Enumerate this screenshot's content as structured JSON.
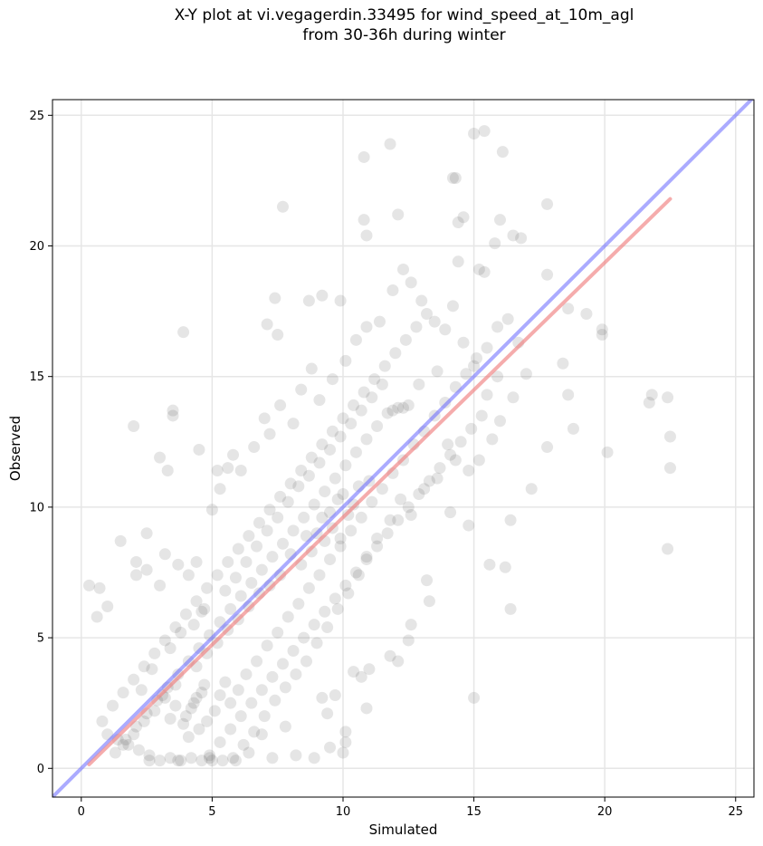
{
  "chart_data": {
    "type": "scatter",
    "title_line1": "X-Y plot at vi.vegagerdin.33495 for wind_speed_at_10m_agl",
    "title_line2": "from 30-36h during winter",
    "xlabel": "Simulated",
    "ylabel": "Observed",
    "xlim": [
      -1.1,
      25.7
    ],
    "ylim": [
      -1.1,
      25.6
    ],
    "xticks": [
      0,
      5,
      10,
      15,
      20,
      25
    ],
    "yticks": [
      0,
      5,
      10,
      15,
      20,
      25
    ],
    "grid": true,
    "point_color": "#444444",
    "identity_line": {
      "color": "#6666ff",
      "x": [
        -1.1,
        25.7
      ],
      "y": [
        -1.1,
        25.7
      ]
    },
    "fit_line": {
      "color": "#f08080",
      "x": [
        0.3,
        22.5
      ],
      "y": [
        0.15,
        21.8
      ]
    },
    "points": [
      [
        0.3,
        7.0
      ],
      [
        0.7,
        6.9
      ],
      [
        0.6,
        5.8
      ],
      [
        1.0,
        6.2
      ],
      [
        2.0,
        13.1
      ],
      [
        2.5,
        9.0
      ],
      [
        3.5,
        13.5
      ],
      [
        3.5,
        13.7
      ],
      [
        3.0,
        11.9
      ],
      [
        3.3,
        11.4
      ],
      [
        3.9,
        16.7
      ],
      [
        4.5,
        12.2
      ],
      [
        5.2,
        11.4
      ],
      [
        7.7,
        21.5
      ],
      [
        7.5,
        16.6
      ],
      [
        7.1,
        17.0
      ],
      [
        7.4,
        18.0
      ],
      [
        8.7,
        17.9
      ],
      [
        9.2,
        18.1
      ],
      [
        9.9,
        17.9
      ],
      [
        10.8,
        23.4
      ],
      [
        11.8,
        23.9
      ],
      [
        10.8,
        21.0
      ],
      [
        10.9,
        20.4
      ],
      [
        12.1,
        21.2
      ],
      [
        14.2,
        22.6
      ],
      [
        14.3,
        22.6
      ],
      [
        14.4,
        20.9
      ],
      [
        14.6,
        21.1
      ],
      [
        15.0,
        24.3
      ],
      [
        15.4,
        24.4
      ],
      [
        16.1,
        23.6
      ],
      [
        15.8,
        20.1
      ],
      [
        16.0,
        21.0
      ],
      [
        16.5,
        20.4
      ],
      [
        16.8,
        20.3
      ],
      [
        14.4,
        19.4
      ],
      [
        15.2,
        19.1
      ],
      [
        15.4,
        19.0
      ],
      [
        17.8,
        21.6
      ],
      [
        17.8,
        18.9
      ],
      [
        18.6,
        17.6
      ],
      [
        19.3,
        17.4
      ],
      [
        19.9,
        16.8
      ],
      [
        19.9,
        16.6
      ],
      [
        21.8,
        14.3
      ],
      [
        21.7,
        14.0
      ],
      [
        22.4,
        14.2
      ],
      [
        22.5,
        12.7
      ],
      [
        22.5,
        11.5
      ],
      [
        22.4,
        8.4
      ],
      [
        20.1,
        12.1
      ],
      [
        18.8,
        13.0
      ],
      [
        18.6,
        14.3
      ],
      [
        18.4,
        15.5
      ],
      [
        17.8,
        12.3
      ],
      [
        17.2,
        10.7
      ],
      [
        16.4,
        9.5
      ],
      [
        16.4,
        6.1
      ],
      [
        16.2,
        7.7
      ],
      [
        15.0,
        2.7
      ],
      [
        15.6,
        7.8
      ],
      [
        13.3,
        6.4
      ],
      [
        14.8,
        9.3
      ],
      [
        14.1,
        9.8
      ],
      [
        13.2,
        7.2
      ],
      [
        12.6,
        5.5
      ],
      [
        12.1,
        4.1
      ],
      [
        11.8,
        4.3
      ],
      [
        12.5,
        4.9
      ],
      [
        10.9,
        2.3
      ],
      [
        10.4,
        3.7
      ],
      [
        10.7,
        3.5
      ],
      [
        11.0,
        3.8
      ],
      [
        10.0,
        0.6
      ],
      [
        10.1,
        1.0
      ],
      [
        10.1,
        1.4
      ],
      [
        9.2,
        2.7
      ],
      [
        9.4,
        2.1
      ],
      [
        9.7,
        2.8
      ],
      [
        1.5,
        8.7
      ],
      [
        2.1,
        7.4
      ],
      [
        2.1,
        7.9
      ],
      [
        2.5,
        7.6
      ],
      [
        3.0,
        7.0
      ],
      [
        3.2,
        8.2
      ],
      [
        3.7,
        7.8
      ],
      [
        4.1,
        7.4
      ],
      [
        4.4,
        7.9
      ],
      [
        4.6,
        6.0
      ],
      [
        5.0,
        9.9
      ],
      [
        5.3,
        10.7
      ],
      [
        5.6,
        11.5
      ],
      [
        5.8,
        12.0
      ],
      [
        6.1,
        11.4
      ],
      [
        6.6,
        12.3
      ],
      [
        7.0,
        13.4
      ],
      [
        7.2,
        12.8
      ],
      [
        7.6,
        13.9
      ],
      [
        8.1,
        13.2
      ],
      [
        8.4,
        14.5
      ],
      [
        8.8,
        15.3
      ],
      [
        9.1,
        14.1
      ],
      [
        9.6,
        14.9
      ],
      [
        10.1,
        15.6
      ],
      [
        10.5,
        16.4
      ],
      [
        10.9,
        16.9
      ],
      [
        11.4,
        17.1
      ],
      [
        11.9,
        18.3
      ],
      [
        12.3,
        19.1
      ],
      [
        12.6,
        18.6
      ],
      [
        13.0,
        17.9
      ],
      [
        13.5,
        17.1
      ],
      [
        13.9,
        16.8
      ],
      [
        14.2,
        17.7
      ],
      [
        14.6,
        16.3
      ],
      [
        15.0,
        15.4
      ],
      [
        15.5,
        16.1
      ],
      [
        15.9,
        16.9
      ],
      [
        16.3,
        17.2
      ],
      [
        16.7,
        16.3
      ],
      [
        17.0,
        15.1
      ],
      [
        16.5,
        14.2
      ],
      [
        16.0,
        13.3
      ],
      [
        15.7,
        12.6
      ],
      [
        15.2,
        11.8
      ],
      [
        14.8,
        11.4
      ],
      [
        14.3,
        11.8
      ],
      [
        14.0,
        12.4
      ],
      [
        13.6,
        11.1
      ],
      [
        13.1,
        10.7
      ],
      [
        12.6,
        9.7
      ],
      [
        12.2,
        10.3
      ],
      [
        11.8,
        9.5
      ],
      [
        11.3,
        8.8
      ],
      [
        10.9,
        8.1
      ],
      [
        10.6,
        7.4
      ],
      [
        10.2,
        6.7
      ],
      [
        9.8,
        6.1
      ],
      [
        9.4,
        5.4
      ],
      [
        9.0,
        4.8
      ],
      [
        8.6,
        4.1
      ],
      [
        8.2,
        3.6
      ],
      [
        7.8,
        3.1
      ],
      [
        7.4,
        2.6
      ],
      [
        7.0,
        2.0
      ],
      [
        6.6,
        1.4
      ],
      [
        6.2,
        0.9
      ],
      [
        5.8,
        0.4
      ],
      [
        5.4,
        0.3
      ],
      [
        5.0,
        0.3
      ],
      [
        4.6,
        0.3
      ],
      [
        4.2,
        0.4
      ],
      [
        3.8,
        0.3
      ],
      [
        3.4,
        0.4
      ],
      [
        3.0,
        0.3
      ],
      [
        2.6,
        0.5
      ],
      [
        2.2,
        0.7
      ],
      [
        1.8,
        0.9
      ],
      [
        1.4,
        1.1
      ],
      [
        1.0,
        1.3
      ],
      [
        0.8,
        1.8
      ],
      [
        1.2,
        2.4
      ],
      [
        1.6,
        2.9
      ],
      [
        2.0,
        3.4
      ],
      [
        2.4,
        3.9
      ],
      [
        2.8,
        4.4
      ],
      [
        3.2,
        4.9
      ],
      [
        3.6,
        5.4
      ],
      [
        4.0,
        5.9
      ],
      [
        4.4,
        6.4
      ],
      [
        4.8,
        6.9
      ],
      [
        5.2,
        7.4
      ],
      [
        5.6,
        7.9
      ],
      [
        6.0,
        8.4
      ],
      [
        6.4,
        8.9
      ],
      [
        6.8,
        9.4
      ],
      [
        7.2,
        9.9
      ],
      [
        7.6,
        10.4
      ],
      [
        8.0,
        10.9
      ],
      [
        8.4,
        11.4
      ],
      [
        8.8,
        11.9
      ],
      [
        9.2,
        12.4
      ],
      [
        9.6,
        12.9
      ],
      [
        10.0,
        13.4
      ],
      [
        10.4,
        13.9
      ],
      [
        10.8,
        14.4
      ],
      [
        11.2,
        14.9
      ],
      [
        11.6,
        15.4
      ],
      [
        12.0,
        15.9
      ],
      [
        12.4,
        16.4
      ],
      [
        12.8,
        16.9
      ],
      [
        13.2,
        17.4
      ],
      [
        13.6,
        15.2
      ],
      [
        12.9,
        14.7
      ],
      [
        12.5,
        13.9
      ],
      [
        12.1,
        13.8
      ],
      [
        11.7,
        13.6
      ],
      [
        11.3,
        13.1
      ],
      [
        10.9,
        12.6
      ],
      [
        10.5,
        12.1
      ],
      [
        10.1,
        11.6
      ],
      [
        9.7,
        11.1
      ],
      [
        9.3,
        10.6
      ],
      [
        8.9,
        10.1
      ],
      [
        8.5,
        9.6
      ],
      [
        8.1,
        9.1
      ],
      [
        7.7,
        8.6
      ],
      [
        7.3,
        8.1
      ],
      [
        6.9,
        7.6
      ],
      [
        6.5,
        7.1
      ],
      [
        6.1,
        6.6
      ],
      [
        5.7,
        6.1
      ],
      [
        5.3,
        5.6
      ],
      [
        4.9,
        5.1
      ],
      [
        4.5,
        4.6
      ],
      [
        4.1,
        4.1
      ],
      [
        3.7,
        3.6
      ],
      [
        3.3,
        3.1
      ],
      [
        2.9,
        2.6
      ],
      [
        2.5,
        2.1
      ],
      [
        2.1,
        1.6
      ],
      [
        1.7,
        1.1
      ],
      [
        1.3,
        0.6
      ],
      [
        4.3,
        2.5
      ],
      [
        4.2,
        2.3
      ],
      [
        4.4,
        2.7
      ],
      [
        4.0,
        2.0
      ],
      [
        4.6,
        2.9
      ],
      [
        3.9,
        1.7
      ],
      [
        4.7,
        3.2
      ],
      [
        4.1,
        1.2
      ],
      [
        4.5,
        1.5
      ],
      [
        3.6,
        2.4
      ],
      [
        5.1,
        2.2
      ],
      [
        5.3,
        2.8
      ],
      [
        3.4,
        1.9
      ],
      [
        4.8,
        1.8
      ],
      [
        5.5,
        3.3
      ],
      [
        3.1,
        2.8
      ],
      [
        5.7,
        2.5
      ],
      [
        6.0,
        3.0
      ],
      [
        6.3,
        3.6
      ],
      [
        6.7,
        4.1
      ],
      [
        7.1,
        4.7
      ],
      [
        7.5,
        5.2
      ],
      [
        7.9,
        5.8
      ],
      [
        8.3,
        6.3
      ],
      [
        8.7,
        6.9
      ],
      [
        9.1,
        7.4
      ],
      [
        9.5,
        8.0
      ],
      [
        9.9,
        8.5
      ],
      [
        10.3,
        9.1
      ],
      [
        10.7,
        9.6
      ],
      [
        11.1,
        10.2
      ],
      [
        11.5,
        10.7
      ],
      [
        11.9,
        11.3
      ],
      [
        12.3,
        11.8
      ],
      [
        12.7,
        12.4
      ],
      [
        13.1,
        12.9
      ],
      [
        13.5,
        13.5
      ],
      [
        13.9,
        14.0
      ],
      [
        14.3,
        14.6
      ],
      [
        14.7,
        15.1
      ],
      [
        15.1,
        15.7
      ],
      [
        15.5,
        14.3
      ],
      [
        15.9,
        15.0
      ],
      [
        15.3,
        13.5
      ],
      [
        14.9,
        13.0
      ],
      [
        14.5,
        12.5
      ],
      [
        14.1,
        12.0
      ],
      [
        13.7,
        11.5
      ],
      [
        13.3,
        11.0
      ],
      [
        12.9,
        10.5
      ],
      [
        12.5,
        10.0
      ],
      [
        12.1,
        9.5
      ],
      [
        11.7,
        9.0
      ],
      [
        11.3,
        8.5
      ],
      [
        10.9,
        8.0
      ],
      [
        10.5,
        7.5
      ],
      [
        10.1,
        7.0
      ],
      [
        9.7,
        6.5
      ],
      [
        9.3,
        6.0
      ],
      [
        8.9,
        5.5
      ],
      [
        8.5,
        5.0
      ],
      [
        8.1,
        4.5
      ],
      [
        7.7,
        4.0
      ],
      [
        7.3,
        3.5
      ],
      [
        6.9,
        3.0
      ],
      [
        6.5,
        2.5
      ],
      [
        6.1,
        2.0
      ],
      [
        5.7,
        1.5
      ],
      [
        5.3,
        1.0
      ],
      [
        4.9,
        0.5
      ],
      [
        8.8,
        8.3
      ],
      [
        9.0,
        9.0
      ],
      [
        9.3,
        8.7
      ],
      [
        9.6,
        9.2
      ],
      [
        9.9,
        8.8
      ],
      [
        10.2,
        9.7
      ],
      [
        9.5,
        9.8
      ],
      [
        9.8,
        10.3
      ],
      [
        10.4,
        10.1
      ],
      [
        8.6,
        8.9
      ],
      [
        9.2,
        9.6
      ],
      [
        10.0,
        10.5
      ],
      [
        10.6,
        10.8
      ],
      [
        11.0,
        11.0
      ],
      [
        8.4,
        7.8
      ],
      [
        8.0,
        8.2
      ],
      [
        7.6,
        7.4
      ],
      [
        7.2,
        7.0
      ],
      [
        6.8,
        6.7
      ],
      [
        6.4,
        6.2
      ],
      [
        6.0,
        5.7
      ],
      [
        5.6,
        5.3
      ],
      [
        5.2,
        4.8
      ],
      [
        4.8,
        4.4
      ],
      [
        4.4,
        3.9
      ],
      [
        3.6,
        3.2
      ],
      [
        3.2,
        2.7
      ],
      [
        2.8,
        2.2
      ],
      [
        2.4,
        1.8
      ],
      [
        2.0,
        1.3
      ],
      [
        1.6,
        0.9
      ],
      [
        2.6,
        0.3
      ],
      [
        3.7,
        0.3
      ],
      [
        4.9,
        0.4
      ],
      [
        5.9,
        0.3
      ],
      [
        6.4,
        0.6
      ],
      [
        7.3,
        0.4
      ],
      [
        8.2,
        0.5
      ],
      [
        8.9,
        0.4
      ],
      [
        9.5,
        0.8
      ],
      [
        7.8,
        1.6
      ],
      [
        6.9,
        1.3
      ],
      [
        2.3,
        3.0
      ],
      [
        2.7,
        3.8
      ],
      [
        3.4,
        4.6
      ],
      [
        3.8,
        5.2
      ],
      [
        4.3,
        5.5
      ],
      [
        4.7,
        6.1
      ],
      [
        5.5,
        6.8
      ],
      [
        5.9,
        7.3
      ],
      [
        6.3,
        7.9
      ],
      [
        6.7,
        8.5
      ],
      [
        7.1,
        9.1
      ],
      [
        7.5,
        9.6
      ],
      [
        7.9,
        10.2
      ],
      [
        8.3,
        10.8
      ],
      [
        8.7,
        11.2
      ],
      [
        9.1,
        11.7
      ],
      [
        9.5,
        12.2
      ],
      [
        9.9,
        12.7
      ],
      [
        10.3,
        13.2
      ],
      [
        10.7,
        13.7
      ],
      [
        11.1,
        14.2
      ],
      [
        11.5,
        14.7
      ],
      [
        11.9,
        13.7
      ],
      [
        12.3,
        13.8
      ]
    ]
  }
}
